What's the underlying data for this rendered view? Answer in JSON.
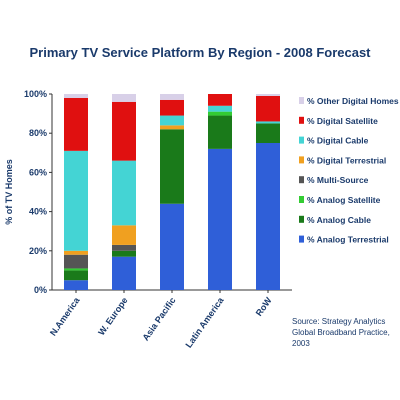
{
  "chart_data": {
    "type": "bar",
    "stacked": true,
    "title": "Primary TV Service Platform By Region - 2008 Forecast",
    "ylabel": "% of TV Homes",
    "xlabel": "",
    "ylim": [
      0,
      100
    ],
    "yticks": [
      "0%",
      "20%",
      "40%",
      "60%",
      "80%",
      "100%"
    ],
    "categories": [
      "N.America",
      "W. Europe",
      "Asia Pacific",
      "Latin America",
      "RoW"
    ],
    "series": [
      {
        "name": "% Analog Terrestrial",
        "color": "#2f5fd8",
        "values": [
          5,
          17,
          44,
          72,
          75
        ]
      },
      {
        "name": "% Analog Cable",
        "color": "#1a7a1a",
        "values": [
          5,
          3,
          38,
          17,
          10
        ]
      },
      {
        "name": "% Analog Satellite",
        "color": "#33cc33",
        "values": [
          1,
          0,
          0,
          2,
          0
        ]
      },
      {
        "name": "% Multi-Source",
        "color": "#555555",
        "values": [
          7,
          3,
          0,
          0,
          0
        ]
      },
      {
        "name": "% Digital Terrestrial",
        "color": "#f0a020",
        "values": [
          2,
          10,
          2,
          0,
          0
        ]
      },
      {
        "name": "% Digital Cable",
        "color": "#44d4d4",
        "values": [
          51,
          33,
          5,
          3,
          1
        ]
      },
      {
        "name": "% Digital Satellite",
        "color": "#e01010",
        "values": [
          27,
          30,
          8,
          6,
          13
        ]
      },
      {
        "name": "% Other Digital Homes",
        "color": "#d8d0e8",
        "values": [
          2,
          4,
          3,
          0,
          1
        ]
      }
    ],
    "legend_order": [
      "% Other Digital Homes",
      "% Digital Satellite",
      "% Digital Cable",
      "% Digital Terrestrial",
      "% Multi-Source",
      "% Analog Satellite",
      "% Analog Cable",
      "% Analog Terrestrial"
    ],
    "legend_position": "right",
    "grid": false
  },
  "source": {
    "lines": [
      "Source: Strategy Analytics",
      "Global Broadband Practice,",
      "2003"
    ]
  }
}
